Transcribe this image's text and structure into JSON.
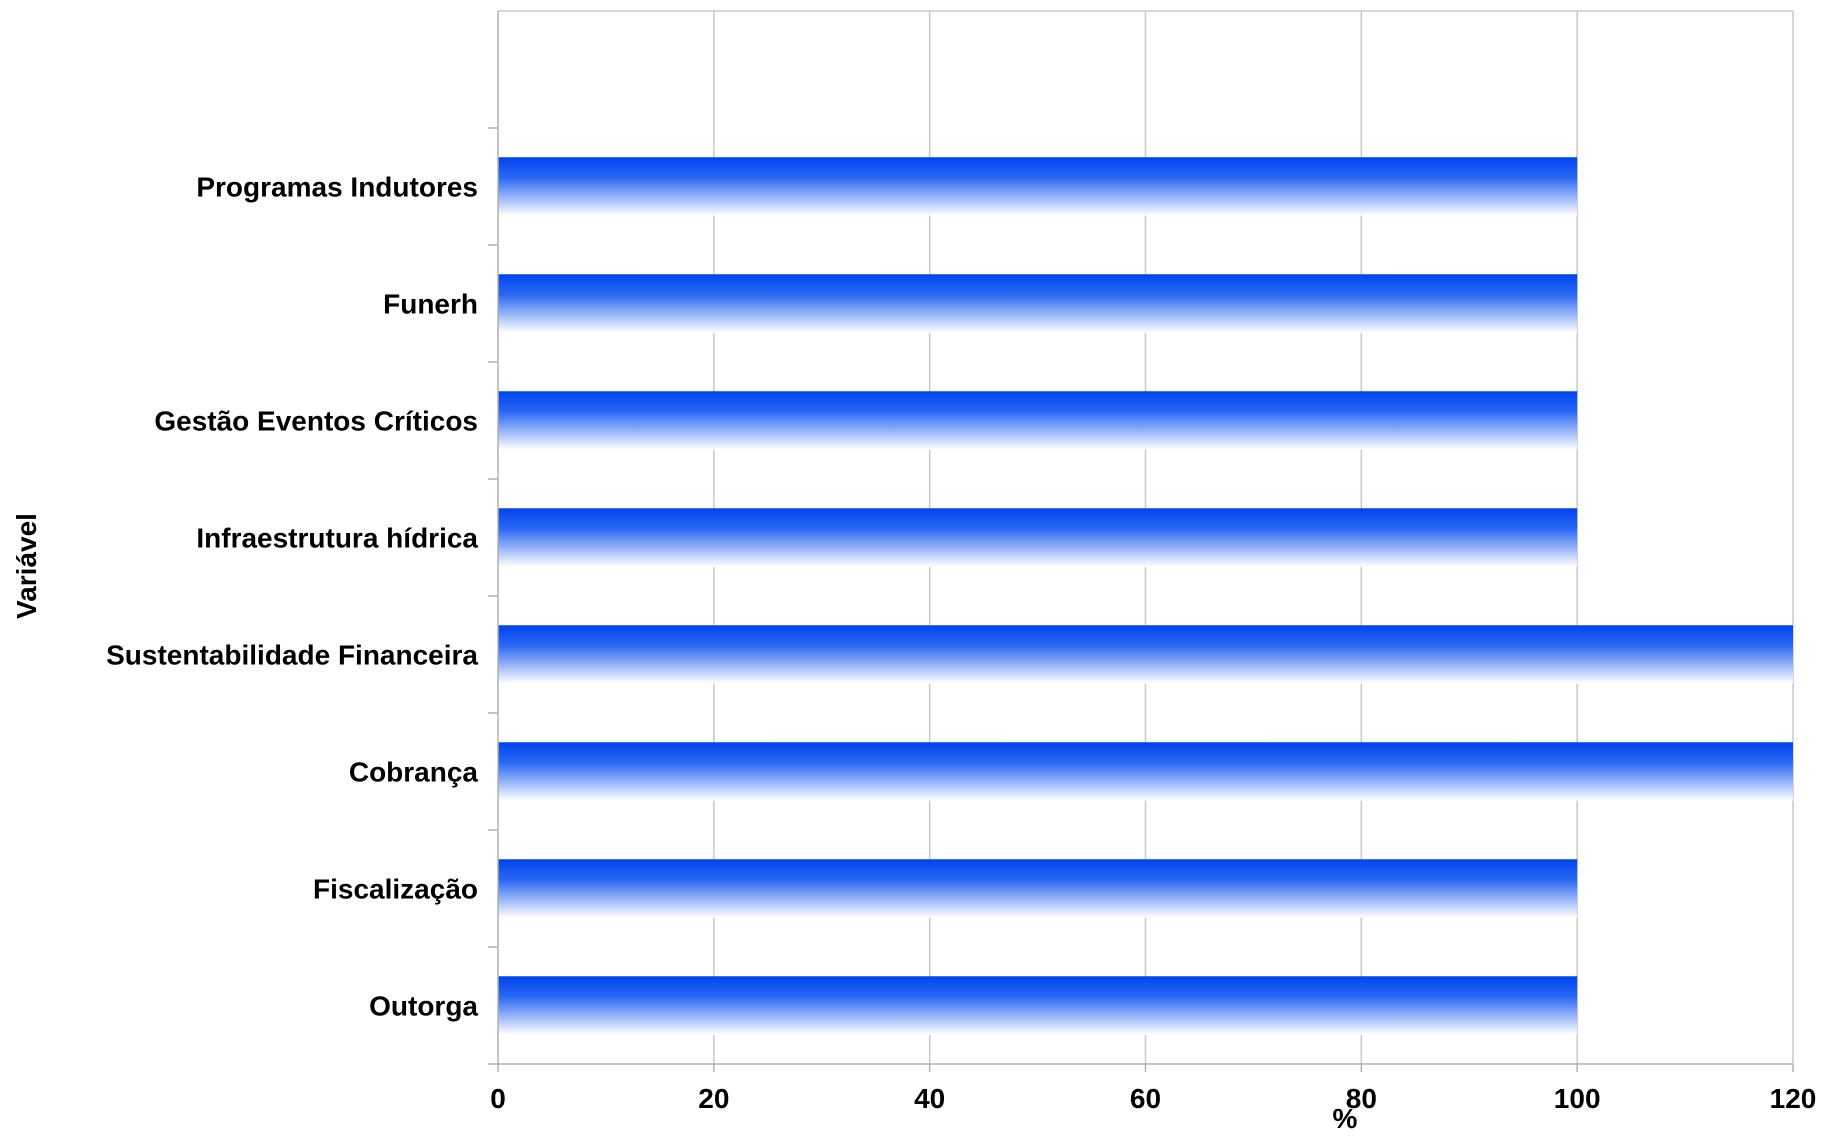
{
  "chart_data": {
    "type": "bar",
    "orientation": "horizontal",
    "title": "",
    "xlabel": "%",
    "ylabel": "Variável",
    "xlim": [
      0,
      120
    ],
    "x_ticks": [
      "0",
      "20",
      "40",
      "60",
      "80",
      "100",
      "120"
    ],
    "grid": "vertical",
    "categories": [
      "Programas Indutores",
      "Funerh",
      "Gestão Eventos Críticos",
      "Infraestrutura hídrica",
      "Sustentabilidade Financeira",
      "Cobrança",
      "Fiscalização",
      "Outorga"
    ],
    "values": [
      100,
      100,
      100,
      100,
      120,
      120,
      100,
      100
    ],
    "colors": {
      "bar_top": "#0044ee",
      "bar_bottom": "#ffffff",
      "grid": "#c8c8c8",
      "axis": "#b0b0b0"
    }
  }
}
